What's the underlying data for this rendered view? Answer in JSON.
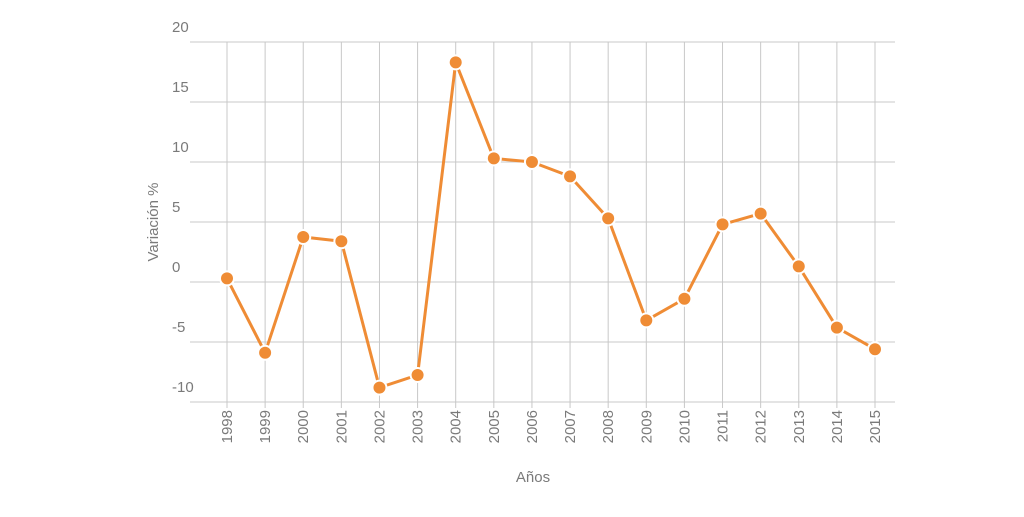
{
  "chart_data": {
    "type": "line",
    "x_label": "Años",
    "y_label": "Variación %",
    "categories": [
      "1998",
      "1999",
      "2000",
      "2001",
      "2002",
      "2003",
      "2004",
      "2005",
      "2006",
      "2007",
      "2008",
      "2009",
      "2010",
      "2011",
      "2012",
      "2013",
      "2014",
      "2015"
    ],
    "series": [
      {
        "color": "#ef8c35",
        "values": [
          0.3,
          -5.9,
          3.75,
          3.4,
          -8.8,
          -7.75,
          18.3,
          10.3,
          10.0,
          8.8,
          5.3,
          -3.2,
          -1.4,
          4.8,
          5.7,
          1.3,
          -3.8,
          -5.6
        ]
      }
    ],
    "ylim": [
      -10,
      20
    ],
    "yticks": [
      -10,
      -5,
      0,
      5,
      10,
      15,
      20
    ],
    "grid": true
  }
}
